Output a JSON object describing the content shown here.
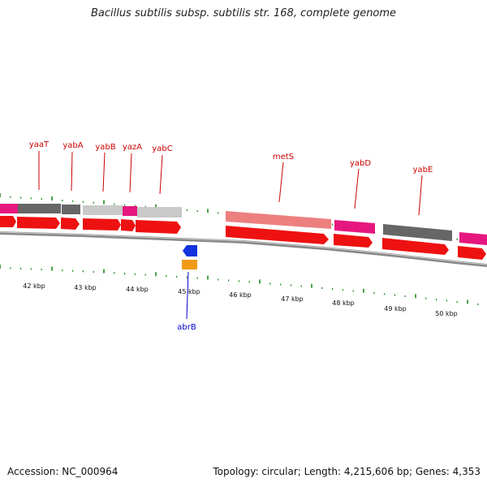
{
  "title": "Bacillus subtilis subsp. subtilis str. 168, complete genome",
  "footer": {
    "accession": "Accession: NC_000964",
    "summary": "Topology: circular; Length: 4,215,606 bp; Genes: 4,353"
  },
  "colors": {
    "cds_forward": "#ee1111",
    "cds_reverse": "#1133dd",
    "gene_pink": "#e5177f",
    "gene_dark": "#666666",
    "gene_light": "#c9c9c9",
    "gene_salmon": "#ee7f7f",
    "gene_orange": "#f09a17",
    "backbone": "#777777",
    "tick": "#1f8a1f",
    "label_forward": "#cc0000",
    "label_reverse": "#0000cc"
  },
  "scale_labels": [
    "42 kbp",
    "43 kbp",
    "44 kbp",
    "45 kbp",
    "46 kbp",
    "47 kbp",
    "48 kbp",
    "49 kbp",
    "50 kbp"
  ],
  "genes_forward": [
    {
      "name": "yaaT"
    },
    {
      "name": "yabA"
    },
    {
      "name": "yabB"
    },
    {
      "name": "yazA"
    },
    {
      "name": "yabC"
    },
    {
      "name": "metS"
    },
    {
      "name": "yabD"
    },
    {
      "name": "yabE"
    }
  ],
  "genes_reverse": [
    {
      "name": "abrB"
    }
  ]
}
